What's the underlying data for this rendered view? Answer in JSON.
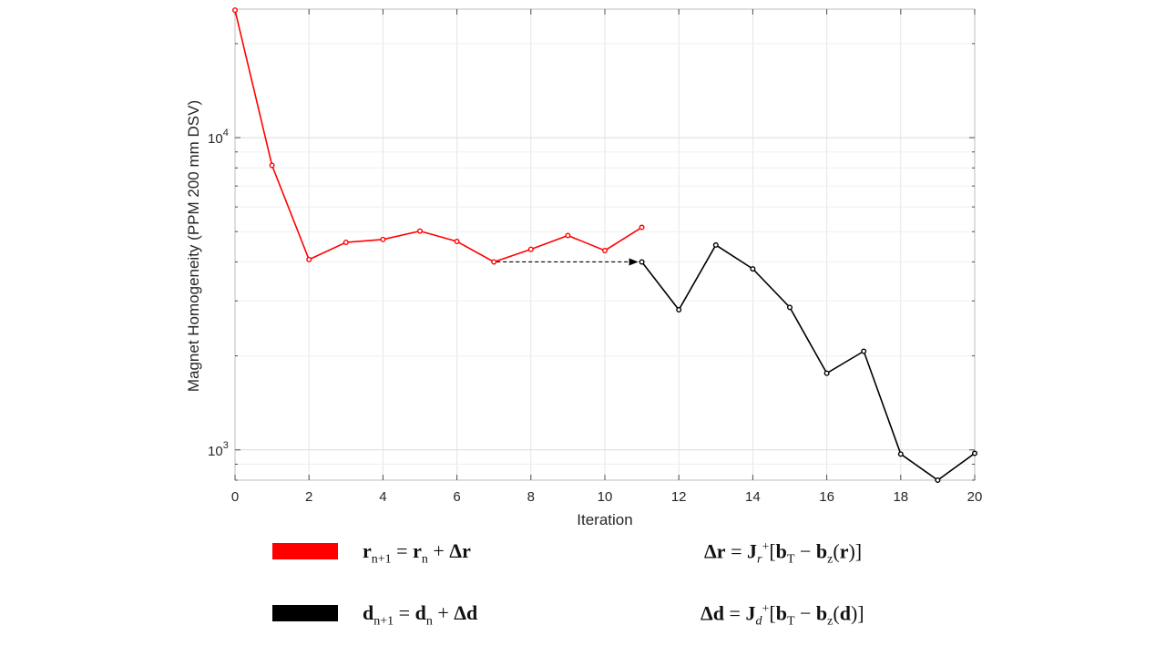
{
  "chart_data": {
    "type": "line",
    "xlabel": "Iteration",
    "ylabel": "Magnet Homogeneity (PPM 200 mm DSV)",
    "xlim": [
      0,
      20
    ],
    "ylim": [
      800,
      25800
    ],
    "yscale": "log",
    "grid": true,
    "x_ticks": [
      "0",
      "2",
      "4",
      "6",
      "8",
      "10",
      "12",
      "14",
      "16",
      "18",
      "20"
    ],
    "y_ticks": [
      {
        "base": "10",
        "exp": "3",
        "value": 1000
      },
      {
        "base": "10",
        "exp": "4",
        "value": 10000
      }
    ],
    "series": [
      {
        "color": "#ff0000",
        "x": [
          0,
          1,
          2,
          3,
          4,
          5,
          6,
          7,
          8,
          9,
          10,
          11
        ],
        "y": [
          25600,
          8150,
          4070,
          4620,
          4720,
          5020,
          4650,
          4000,
          4390,
          4860,
          4350,
          5160
        ]
      },
      {
        "color": "#000000",
        "x": [
          11,
          12,
          13,
          14,
          15,
          16,
          17,
          18,
          19,
          20
        ],
        "y": [
          4000,
          2810,
          4530,
          3800,
          2860,
          1760,
          2070,
          970,
          800,
          975
        ]
      }
    ],
    "annotation": {
      "type": "dashed-arrow",
      "from": [
        7,
        4000
      ],
      "to": [
        11,
        4000
      ]
    }
  },
  "legend": [
    {
      "color": "#ff0000",
      "update_lhs": "r",
      "update_lhs_sub": "n+1",
      "update_rhs_var": "r",
      "update_rhs_sub": "n",
      "update_delta": "Δr",
      "delta_lhs": "Δr",
      "jac_sub": "r",
      "target": "b",
      "target_sub": "T",
      "field": "b",
      "field_sub": "z",
      "arg": "r"
    },
    {
      "color": "#000000",
      "update_lhs": "d",
      "update_lhs_sub": "n+1",
      "update_rhs_var": "d",
      "update_rhs_sub": "n",
      "update_delta": "Δd",
      "delta_lhs": "Δd",
      "jac_sub": "d",
      "target": "b",
      "target_sub": "T",
      "field": "b",
      "field_sub": "z",
      "arg": "d"
    }
  ]
}
